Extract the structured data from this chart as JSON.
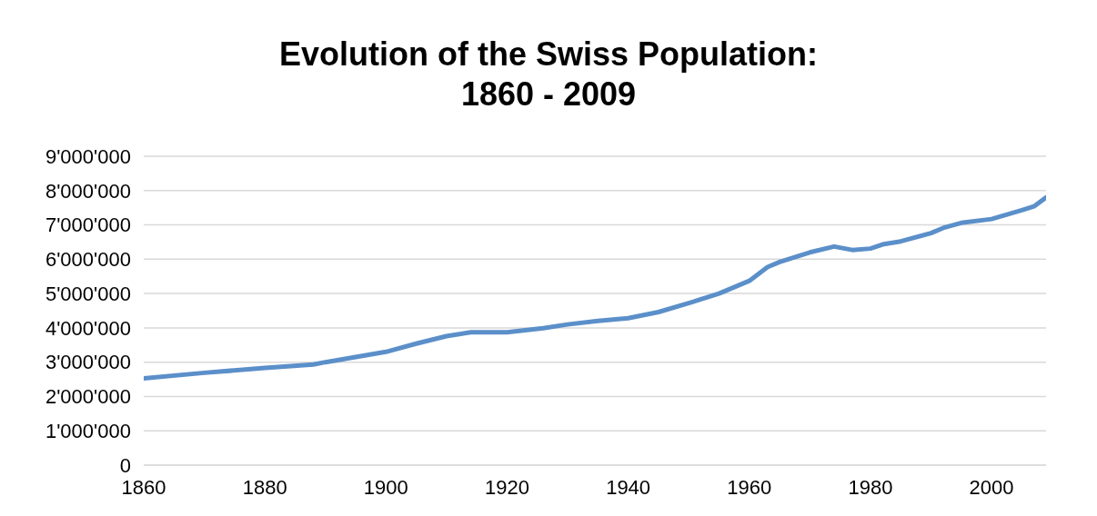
{
  "chart_data": {
    "type": "line",
    "title": "Evolution of the Swiss Population:\n1860 - 2009",
    "x": [
      1860,
      1870,
      1880,
      1888,
      1890,
      1900,
      1905,
      1910,
      1914,
      1920,
      1926,
      1930,
      1935,
      1940,
      1945,
      1950,
      1955,
      1960,
      1963,
      1965,
      1970,
      1974,
      1977,
      1980,
      1982,
      1985,
      1990,
      1992,
      1995,
      2000,
      2005,
      2007,
      2009
    ],
    "series": [
      {
        "color": "#5b8fc9",
        "values": [
          2530000,
          2690000,
          2830000,
          2930000,
          3000000,
          3300000,
          3540000,
          3760000,
          3870000,
          3870000,
          3990000,
          4100000,
          4200000,
          4280000,
          4460000,
          4720000,
          5000000,
          5370000,
          5770000,
          5920000,
          6200000,
          6370000,
          6270000,
          6310000,
          6430000,
          6520000,
          6760000,
          6910000,
          7060000,
          7170000,
          7430000,
          7540000,
          7800000
        ]
      }
    ],
    "xlim": [
      1860,
      2009
    ],
    "xticks": [
      1860,
      1880,
      1900,
      1920,
      1940,
      1960,
      1980,
      2000
    ],
    "ylim": [
      0,
      9000000
    ],
    "yticks": [
      0,
      {
        "value": 1000000,
        "label": "1'000'000"
      },
      {
        "value": 2000000,
        "label": "2'000'000"
      },
      {
        "value": 3000000,
        "label": "3'000'000"
      },
      {
        "value": 4000000,
        "label": "4'000'000"
      },
      {
        "value": 5000000,
        "label": "5'000'000"
      },
      {
        "value": 6000000,
        "label": "6'000'000"
      },
      {
        "value": 7000000,
        "label": "7'000'000"
      },
      {
        "value": 8000000,
        "label": "8'000'000"
      },
      {
        "value": 9000000,
        "label": "9'000'000"
      }
    ],
    "grid": "y",
    "legend": false,
    "marker": "none",
    "line_style": "solid"
  }
}
